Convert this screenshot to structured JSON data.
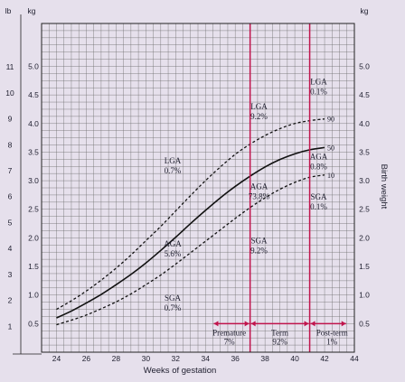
{
  "colors": {
    "background": "#e6e0ec",
    "grid": "#6b6b6b",
    "curve": "#111111",
    "marker": "#c0144c"
  },
  "chart_data": {
    "type": "line",
    "title": "",
    "xlabel": "Weeks of gestation",
    "ylabel": "Birth weight",
    "left_units": [
      "lb",
      "kg"
    ],
    "right_unit": "kg",
    "xlim": [
      23,
      44
    ],
    "ylim": [
      0,
      5.75
    ],
    "x_ticks": [
      24,
      26,
      28,
      30,
      32,
      34,
      36,
      38,
      40,
      42,
      44
    ],
    "kg_ticks": [
      "0.5",
      "1.0",
      "1.5",
      "2.0",
      "2.5",
      "3.0",
      "3.5",
      "4.0",
      "4.5",
      "5.0"
    ],
    "kg_tick_values": [
      0.5,
      1.0,
      1.5,
      2.0,
      2.5,
      3.0,
      3.5,
      4.0,
      4.5,
      5.0
    ],
    "lb_ticks": [
      "1",
      "2",
      "3",
      "4",
      "5",
      "6",
      "7",
      "8",
      "9",
      "10",
      "11"
    ],
    "lb_tick_values": [
      1,
      2,
      3,
      4,
      5,
      6,
      7,
      8,
      9,
      10,
      11
    ],
    "grid": true,
    "series": [
      {
        "name": "90",
        "style": "dashed",
        "x": [
          24,
          25,
          26,
          27,
          28,
          29,
          30,
          31,
          32,
          33,
          34,
          35,
          36,
          37,
          38,
          39,
          40,
          41,
          42
        ],
        "values": [
          0.75,
          0.9,
          1.07,
          1.26,
          1.47,
          1.7,
          1.95,
          2.2,
          2.47,
          2.74,
          3.0,
          3.24,
          3.46,
          3.64,
          3.79,
          3.91,
          4.0,
          4.05,
          4.08
        ]
      },
      {
        "name": "50",
        "style": "solid",
        "x": [
          24,
          25,
          26,
          27,
          28,
          29,
          30,
          31,
          32,
          33,
          34,
          35,
          36,
          37,
          38,
          39,
          40,
          41,
          42
        ],
        "values": [
          0.6,
          0.72,
          0.86,
          1.01,
          1.18,
          1.36,
          1.56,
          1.78,
          2.01,
          2.25,
          2.48,
          2.7,
          2.9,
          3.08,
          3.24,
          3.37,
          3.47,
          3.54,
          3.58
        ]
      },
      {
        "name": "10",
        "style": "dashed",
        "x": [
          24,
          25,
          26,
          27,
          28,
          29,
          30,
          31,
          32,
          33,
          34,
          35,
          36,
          37,
          38,
          39,
          40,
          41,
          42
        ],
        "values": [
          0.48,
          0.56,
          0.65,
          0.76,
          0.88,
          1.02,
          1.18,
          1.35,
          1.54,
          1.74,
          1.94,
          2.14,
          2.34,
          2.53,
          2.7,
          2.85,
          2.97,
          3.06,
          3.1
        ]
      }
    ],
    "vertical_lines": [
      37,
      41
    ],
    "annotations": [
      {
        "lines": [
          "LGA",
          "0.7%"
        ],
        "x": 31.8,
        "y": 3.3
      },
      {
        "lines": [
          "AGA",
          "5.6%"
        ],
        "x": 31.8,
        "y": 1.85
      },
      {
        "lines": [
          "SGA",
          "0.7%"
        ],
        "x": 31.8,
        "y": 0.9
      },
      {
        "lines": [
          "LGA",
          "9.2%"
        ],
        "x": 37.6,
        "y": 4.25
      },
      {
        "lines": [
          "AGA",
          "73.8%"
        ],
        "x": 37.6,
        "y": 2.85
      },
      {
        "lines": [
          "SGA",
          "9.2%"
        ],
        "x": 37.6,
        "y": 1.9
      },
      {
        "lines": [
          "LGA",
          "0.1%"
        ],
        "x": 41.6,
        "y": 4.68
      },
      {
        "lines": [
          "AGA",
          "0.8%"
        ],
        "x": 41.6,
        "y": 3.37
      },
      {
        "lines": [
          "SGA",
          "0.1%"
        ],
        "x": 41.6,
        "y": 2.67
      }
    ],
    "periods": [
      {
        "lines": [
          "Premature",
          "7%"
        ],
        "start": 34.5,
        "end": 37,
        "label_x": 35.6
      },
      {
        "lines": [
          "Term",
          "92%"
        ],
        "start": 37,
        "end": 41,
        "label_x": 39
      },
      {
        "lines": [
          "Post-term",
          "1%"
        ],
        "start": 41,
        "end": 43.5,
        "label_x": 42.5
      }
    ],
    "period_arrow_y": 0.5
  }
}
